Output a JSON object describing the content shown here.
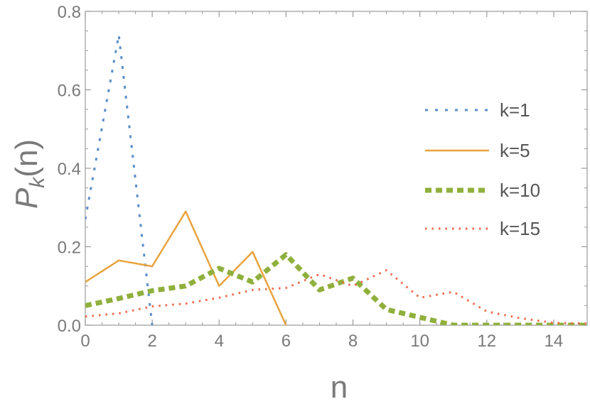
{
  "chart_data": {
    "type": "line",
    "title": "",
    "xlabel": "n",
    "ylabel_main": "P",
    "ylabel_sub": "k",
    "ylabel_tail": "(n)",
    "xlim": [
      0,
      15
    ],
    "ylim": [
      0,
      0.8
    ],
    "xticks": [
      0,
      2,
      4,
      6,
      8,
      10,
      12,
      14
    ],
    "yticks": [
      0.0,
      0.2,
      0.4,
      0.6,
      0.8
    ],
    "xtick_labels": [
      "0",
      "2",
      "4",
      "6",
      "8",
      "10",
      "12",
      "14"
    ],
    "ytick_labels": [
      "0.0",
      "0.2",
      "0.4",
      "0.6",
      "0.8"
    ],
    "grid": false,
    "legend_position": "right",
    "series": [
      {
        "name": "k=1",
        "color": "#5b8ec9",
        "style": "dashed",
        "points": [
          [
            0,
            0.27
          ],
          [
            1,
            0.74
          ],
          [
            2,
            0.0
          ]
        ]
      },
      {
        "name": "k=5",
        "color": "#e8a33d",
        "style": "solid",
        "points": [
          [
            0,
            0.11
          ],
          [
            1,
            0.165
          ],
          [
            2,
            0.15
          ],
          [
            3,
            0.29
          ],
          [
            4,
            0.1
          ],
          [
            5,
            0.187
          ],
          [
            6,
            0.0
          ]
        ]
      },
      {
        "name": "k=10",
        "color": "#8fb03c",
        "style": "thick-dashed",
        "points": [
          [
            0,
            0.05
          ],
          [
            1,
            0.068
          ],
          [
            2,
            0.088
          ],
          [
            3,
            0.1
          ],
          [
            4,
            0.145
          ],
          [
            5,
            0.11
          ],
          [
            6,
            0.18
          ],
          [
            7,
            0.09
          ],
          [
            8,
            0.12
          ],
          [
            9,
            0.04
          ],
          [
            10,
            0.02
          ],
          [
            11,
            0.0
          ],
          [
            12,
            0.0
          ],
          [
            13,
            0.0
          ],
          [
            14,
            0.0
          ],
          [
            15,
            0.0
          ]
        ]
      },
      {
        "name": "k=15",
        "color": "#ee6a4c",
        "style": "dotted",
        "points": [
          [
            0,
            0.022
          ],
          [
            1,
            0.03
          ],
          [
            2,
            0.048
          ],
          [
            3,
            0.055
          ],
          [
            4,
            0.07
          ],
          [
            5,
            0.09
          ],
          [
            6,
            0.095
          ],
          [
            7,
            0.13
          ],
          [
            8,
            0.1
          ],
          [
            9,
            0.14
          ],
          [
            10,
            0.07
          ],
          [
            11,
            0.085
          ],
          [
            12,
            0.035
          ],
          [
            13,
            0.018
          ],
          [
            14,
            0.006
          ],
          [
            15,
            0.004
          ]
        ]
      }
    ]
  }
}
